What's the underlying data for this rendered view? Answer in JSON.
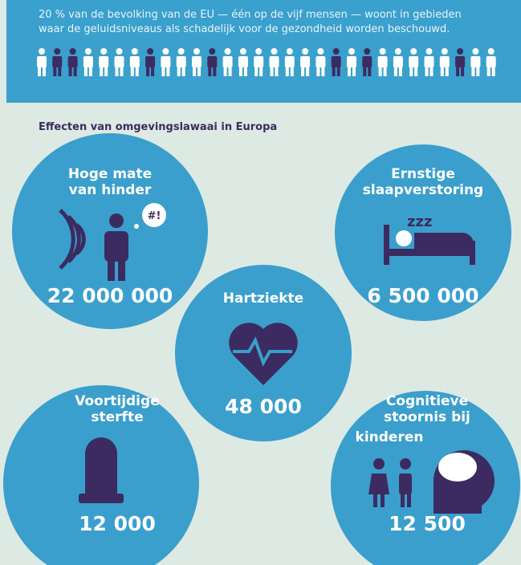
{
  "header": {
    "lines": [
      "20 % van de bevolking van de EU — één op de vijf mensen — woont in gebieden",
      "waar de geluidsniveaus als schadelijk voor de gezondheid worden beschouwd."
    ]
  },
  "heading": "Effecten van omgevingslawaai in Europa",
  "items": [
    {
      "label": [
        "Hoge mate",
        "van hinder"
      ],
      "value": "22 000 000"
    },
    {
      "label": [
        "Ernstige",
        "slaapverstoring"
      ],
      "value": "6 500 000"
    },
    {
      "label": [
        "Hartziekte"
      ],
      "value": "48 000"
    },
    {
      "label": [
        "Voortijdige",
        "sterfte"
      ],
      "value": "12 000"
    },
    {
      "label": [
        "Cognitieve",
        "stoornis bij",
        "kinderen"
      ],
      "value": "12 500"
    }
  ]
}
